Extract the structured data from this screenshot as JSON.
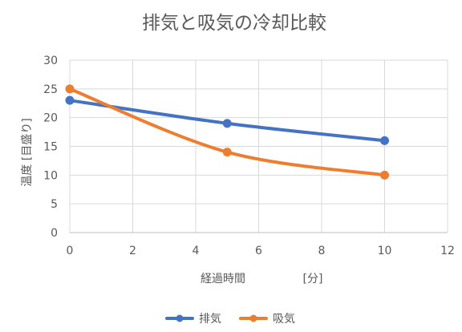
{
  "chart_data": {
    "type": "line",
    "title": "排気と吸気の冷却比較",
    "xlabel": "経過時間",
    "xlabel_unit": "[分]",
    "ylabel": "温度 [目盛り]",
    "xlim": [
      0,
      12
    ],
    "ylim": [
      0,
      30
    ],
    "x_ticks": [
      0,
      2,
      4,
      6,
      8,
      10,
      12
    ],
    "y_ticks": [
      0,
      5,
      10,
      15,
      20,
      25,
      30
    ],
    "grid": true,
    "legend_position": "bottom",
    "series": [
      {
        "name": "排気",
        "color": "#4472C4",
        "points": [
          {
            "x": 0,
            "y": 23
          },
          {
            "x": 5,
            "y": 19
          },
          {
            "x": 10,
            "y": 16
          }
        ]
      },
      {
        "name": "吸気",
        "color": "#ED7D31",
        "points": [
          {
            "x": 0,
            "y": 25
          },
          {
            "x": 5,
            "y": 14
          },
          {
            "x": 10,
            "y": 10
          }
        ]
      }
    ]
  }
}
